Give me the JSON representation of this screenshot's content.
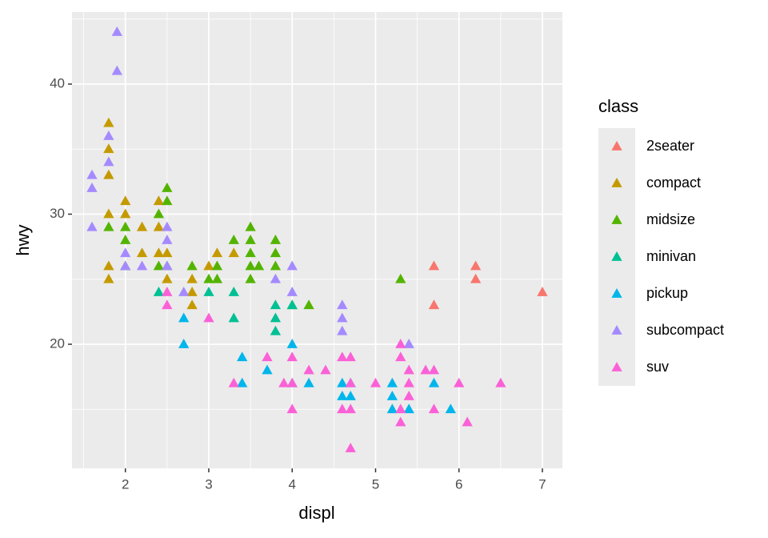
{
  "chart_data": {
    "type": "scatter",
    "marker": "triangle",
    "x_label": "displ",
    "y_label": "hwy",
    "legend_title": "class",
    "legend": "right",
    "grid": true,
    "xlim": [
      1.36,
      7.24
    ],
    "ylim": [
      10.46,
      45.54
    ],
    "xticks": [
      2,
      3,
      4,
      5,
      6,
      7
    ],
    "yticks": [
      20,
      30,
      40
    ],
    "series": [
      {
        "name": "2seater",
        "color": "#F8766D",
        "x": [
          5.7,
          5.7,
          6.2,
          6.2,
          7.0
        ],
        "values": [
          26,
          23,
          26,
          25,
          24
        ]
      },
      {
        "name": "compact",
        "color": "#C49A00",
        "x": [
          1.8,
          1.8,
          1.8,
          1.8,
          1.8,
          1.8,
          2.0,
          2.0,
          2.2,
          2.2,
          2.4,
          2.4,
          2.4,
          2.5,
          2.5,
          2.8,
          2.8,
          2.8,
          3.0,
          3.1,
          3.3
        ],
        "values": [
          37,
          35,
          33,
          30,
          26,
          25,
          31,
          30,
          29,
          27,
          31,
          29,
          27,
          27,
          25,
          25,
          24,
          23,
          26,
          27,
          27
        ]
      },
      {
        "name": "midsize",
        "color": "#53B400",
        "x": [
          1.8,
          2.0,
          2.0,
          2.0,
          2.4,
          2.4,
          2.5,
          2.5,
          2.5,
          2.8,
          3.0,
          3.1,
          3.1,
          3.3,
          3.5,
          3.5,
          3.5,
          3.5,
          3.5,
          3.6,
          3.8,
          3.8,
          3.8,
          4.0,
          4.2,
          5.3
        ],
        "values": [
          29,
          29,
          28,
          26,
          30,
          26,
          32,
          31,
          26,
          26,
          25,
          26,
          25,
          28,
          29,
          28,
          27,
          26,
          25,
          26,
          28,
          27,
          26,
          23,
          23,
          25
        ]
      },
      {
        "name": "minivan",
        "color": "#00C094",
        "x": [
          2.4,
          3.0,
          3.3,
          3.3,
          3.8,
          3.8,
          3.8,
          4.0
        ],
        "values": [
          24,
          24,
          24,
          22,
          23,
          22,
          21,
          23
        ]
      },
      {
        "name": "pickup",
        "color": "#00B6EB",
        "x": [
          2.7,
          2.7,
          3.4,
          3.4,
          3.7,
          4.0,
          4.0,
          4.2,
          4.6,
          4.6,
          4.7,
          4.7,
          5.2,
          5.2,
          5.2,
          5.4,
          5.7,
          5.9
        ],
        "values": [
          22,
          20,
          19,
          17,
          18,
          20,
          17,
          17,
          17,
          16,
          17,
          16,
          17,
          16,
          15,
          15,
          17,
          15
        ]
      },
      {
        "name": "subcompact",
        "color": "#A58AFF",
        "x": [
          1.9,
          1.9,
          1.6,
          1.6,
          1.6,
          1.8,
          1.8,
          2.0,
          2.0,
          2.2,
          2.5,
          2.5,
          2.5,
          2.7,
          3.8,
          4.0,
          4.0,
          4.6,
          4.6,
          4.6,
          5.4
        ],
        "values": [
          44,
          41,
          33,
          32,
          29,
          36,
          34,
          27,
          26,
          26,
          29,
          28,
          26,
          24,
          25,
          26,
          24,
          23,
          22,
          21,
          20
        ]
      },
      {
        "name": "suv",
        "color": "#FB61D7",
        "x": [
          2.5,
          2.5,
          3.0,
          3.3,
          3.7,
          3.9,
          4.0,
          4.0,
          4.0,
          4.2,
          4.4,
          4.6,
          4.6,
          4.7,
          4.7,
          4.7,
          4.7,
          5.0,
          5.3,
          5.3,
          5.3,
          5.3,
          5.4,
          5.4,
          5.4,
          5.6,
          5.7,
          5.7,
          6.0,
          6.1,
          6.5
        ],
        "values": [
          24,
          23,
          22,
          17,
          19,
          17,
          19,
          17,
          15,
          18,
          18,
          19,
          15,
          19,
          17,
          15,
          12,
          17,
          20,
          19,
          15,
          14,
          18,
          17,
          16,
          18,
          18,
          15,
          17,
          14,
          17
        ]
      }
    ]
  }
}
